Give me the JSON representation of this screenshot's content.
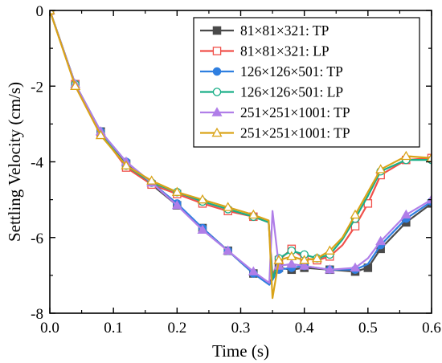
{
  "chart_data": {
    "type": "line",
    "xlabel": "Time (s)",
    "ylabel": "Settling Velocity (cm/s)",
    "xlim": [
      0,
      0.6
    ],
    "ylim": [
      -8,
      0
    ],
    "xticks": [
      "0.0",
      "0.1",
      "0.2",
      "0.3",
      "0.4",
      "0.5",
      "0.6"
    ],
    "yticks": [
      "0",
      "-2",
      "-4",
      "-6",
      "-8"
    ],
    "legend_position": "top-right",
    "grid": false,
    "series": [
      {
        "name": "81×81×321: TP",
        "color": "#4a4a4a",
        "marker": "square-filled",
        "x": [
          0,
          0.04,
          0.08,
          0.12,
          0.16,
          0.2,
          0.24,
          0.28,
          0.32,
          0.345,
          0.36,
          0.38,
          0.4,
          0.44,
          0.48,
          0.5,
          0.52,
          0.56,
          0.6
        ],
        "y": [
          0,
          -1.95,
          -3.2,
          -4.05,
          -4.6,
          -5.15,
          -5.75,
          -6.35,
          -6.95,
          -7.2,
          -6.8,
          -6.85,
          -6.8,
          -6.85,
          -6.9,
          -6.8,
          -6.3,
          -5.6,
          -5.1
        ],
        "marker_x": [
          0,
          0.04,
          0.08,
          0.12,
          0.16,
          0.2,
          0.24,
          0.28,
          0.32,
          0.36,
          0.38,
          0.4,
          0.44,
          0.48,
          0.5,
          0.52,
          0.56,
          0.6
        ]
      },
      {
        "name": "81×81×321: LP",
        "color": "#f0504a",
        "marker": "square-open",
        "x": [
          0,
          0.04,
          0.08,
          0.12,
          0.16,
          0.2,
          0.24,
          0.28,
          0.32,
          0.344,
          0.35,
          0.36,
          0.38,
          0.4,
          0.42,
          0.44,
          0.46,
          0.48,
          0.5,
          0.52,
          0.56,
          0.6
        ],
        "y": [
          0,
          -1.95,
          -3.25,
          -4.15,
          -4.6,
          -4.85,
          -5.1,
          -5.3,
          -5.45,
          -5.6,
          -7.0,
          -6.6,
          -6.3,
          -6.55,
          -6.6,
          -6.5,
          -6.2,
          -5.7,
          -5.1,
          -4.35,
          -3.95,
          -3.9
        ],
        "marker_x": [
          0,
          0.04,
          0.08,
          0.12,
          0.16,
          0.2,
          0.24,
          0.28,
          0.32,
          0.36,
          0.38,
          0.4,
          0.42,
          0.44,
          0.48,
          0.5,
          0.52,
          0.56,
          0.6
        ]
      },
      {
        "name": "126×126×501: TP",
        "color": "#2f7fe0",
        "marker": "circle-filled",
        "x": [
          0,
          0.04,
          0.08,
          0.12,
          0.16,
          0.2,
          0.24,
          0.28,
          0.32,
          0.345,
          0.36,
          0.38,
          0.4,
          0.44,
          0.48,
          0.5,
          0.52,
          0.56,
          0.6
        ],
        "y": [
          0,
          -1.95,
          -3.2,
          -4.0,
          -4.55,
          -5.1,
          -5.75,
          -6.35,
          -6.95,
          -7.25,
          -6.85,
          -6.8,
          -6.75,
          -6.85,
          -6.85,
          -6.7,
          -6.2,
          -5.5,
          -5.05
        ],
        "marker_x": [
          0,
          0.04,
          0.08,
          0.12,
          0.16,
          0.2,
          0.24,
          0.28,
          0.32,
          0.36,
          0.38,
          0.4,
          0.44,
          0.48,
          0.52,
          0.56,
          0.6
        ]
      },
      {
        "name": "126×126×501: LP",
        "color": "#1aaf88",
        "marker": "circle-open",
        "x": [
          0,
          0.04,
          0.08,
          0.12,
          0.16,
          0.2,
          0.24,
          0.28,
          0.32,
          0.344,
          0.35,
          0.36,
          0.38,
          0.4,
          0.42,
          0.44,
          0.46,
          0.48,
          0.5,
          0.52,
          0.56,
          0.6
        ],
        "y": [
          0,
          -1.95,
          -3.25,
          -4.1,
          -4.55,
          -4.8,
          -5.05,
          -5.25,
          -5.45,
          -5.6,
          -7.1,
          -6.55,
          -6.35,
          -6.45,
          -6.55,
          -6.45,
          -6.05,
          -5.5,
          -4.9,
          -4.25,
          -3.95,
          -3.95
        ],
        "marker_x": [
          0,
          0.04,
          0.08,
          0.12,
          0.16,
          0.2,
          0.24,
          0.28,
          0.32,
          0.36,
          0.38,
          0.4,
          0.42,
          0.44,
          0.48,
          0.52,
          0.56,
          0.6
        ]
      },
      {
        "name": "251×251×1001: TP",
        "color": "#b07ee8",
        "marker": "triangle-filled",
        "x": [
          0,
          0.04,
          0.08,
          0.12,
          0.16,
          0.2,
          0.24,
          0.28,
          0.32,
          0.345,
          0.35,
          0.36,
          0.38,
          0.4,
          0.44,
          0.48,
          0.5,
          0.52,
          0.56,
          0.6
        ],
        "y": [
          0,
          -1.95,
          -3.2,
          -4.0,
          -4.55,
          -5.15,
          -5.8,
          -6.35,
          -6.9,
          -7.2,
          -5.3,
          -6.75,
          -6.7,
          -6.75,
          -6.85,
          -6.8,
          -6.55,
          -6.1,
          -5.4,
          -5.0
        ],
        "marker_x": [
          0,
          0.04,
          0.08,
          0.12,
          0.16,
          0.2,
          0.24,
          0.28,
          0.32,
          0.36,
          0.38,
          0.4,
          0.44,
          0.48,
          0.52,
          0.56,
          0.6
        ]
      },
      {
        "name": "251×251×1001: TP",
        "color": "#d9a318",
        "marker": "triangle-open",
        "x": [
          0,
          0.04,
          0.08,
          0.12,
          0.16,
          0.2,
          0.24,
          0.28,
          0.32,
          0.344,
          0.35,
          0.36,
          0.38,
          0.4,
          0.42,
          0.44,
          0.46,
          0.48,
          0.5,
          0.52,
          0.56,
          0.6
        ],
        "y": [
          0,
          -2.0,
          -3.3,
          -4.1,
          -4.5,
          -4.8,
          -5.0,
          -5.2,
          -5.4,
          -5.55,
          -7.6,
          -6.6,
          -6.5,
          -6.6,
          -6.55,
          -6.35,
          -6.0,
          -5.4,
          -4.8,
          -4.2,
          -3.85,
          -3.9
        ],
        "marker_x": [
          0,
          0.04,
          0.08,
          0.12,
          0.16,
          0.2,
          0.24,
          0.28,
          0.32,
          0.36,
          0.38,
          0.4,
          0.42,
          0.44,
          0.48,
          0.52,
          0.56,
          0.6
        ]
      }
    ]
  }
}
